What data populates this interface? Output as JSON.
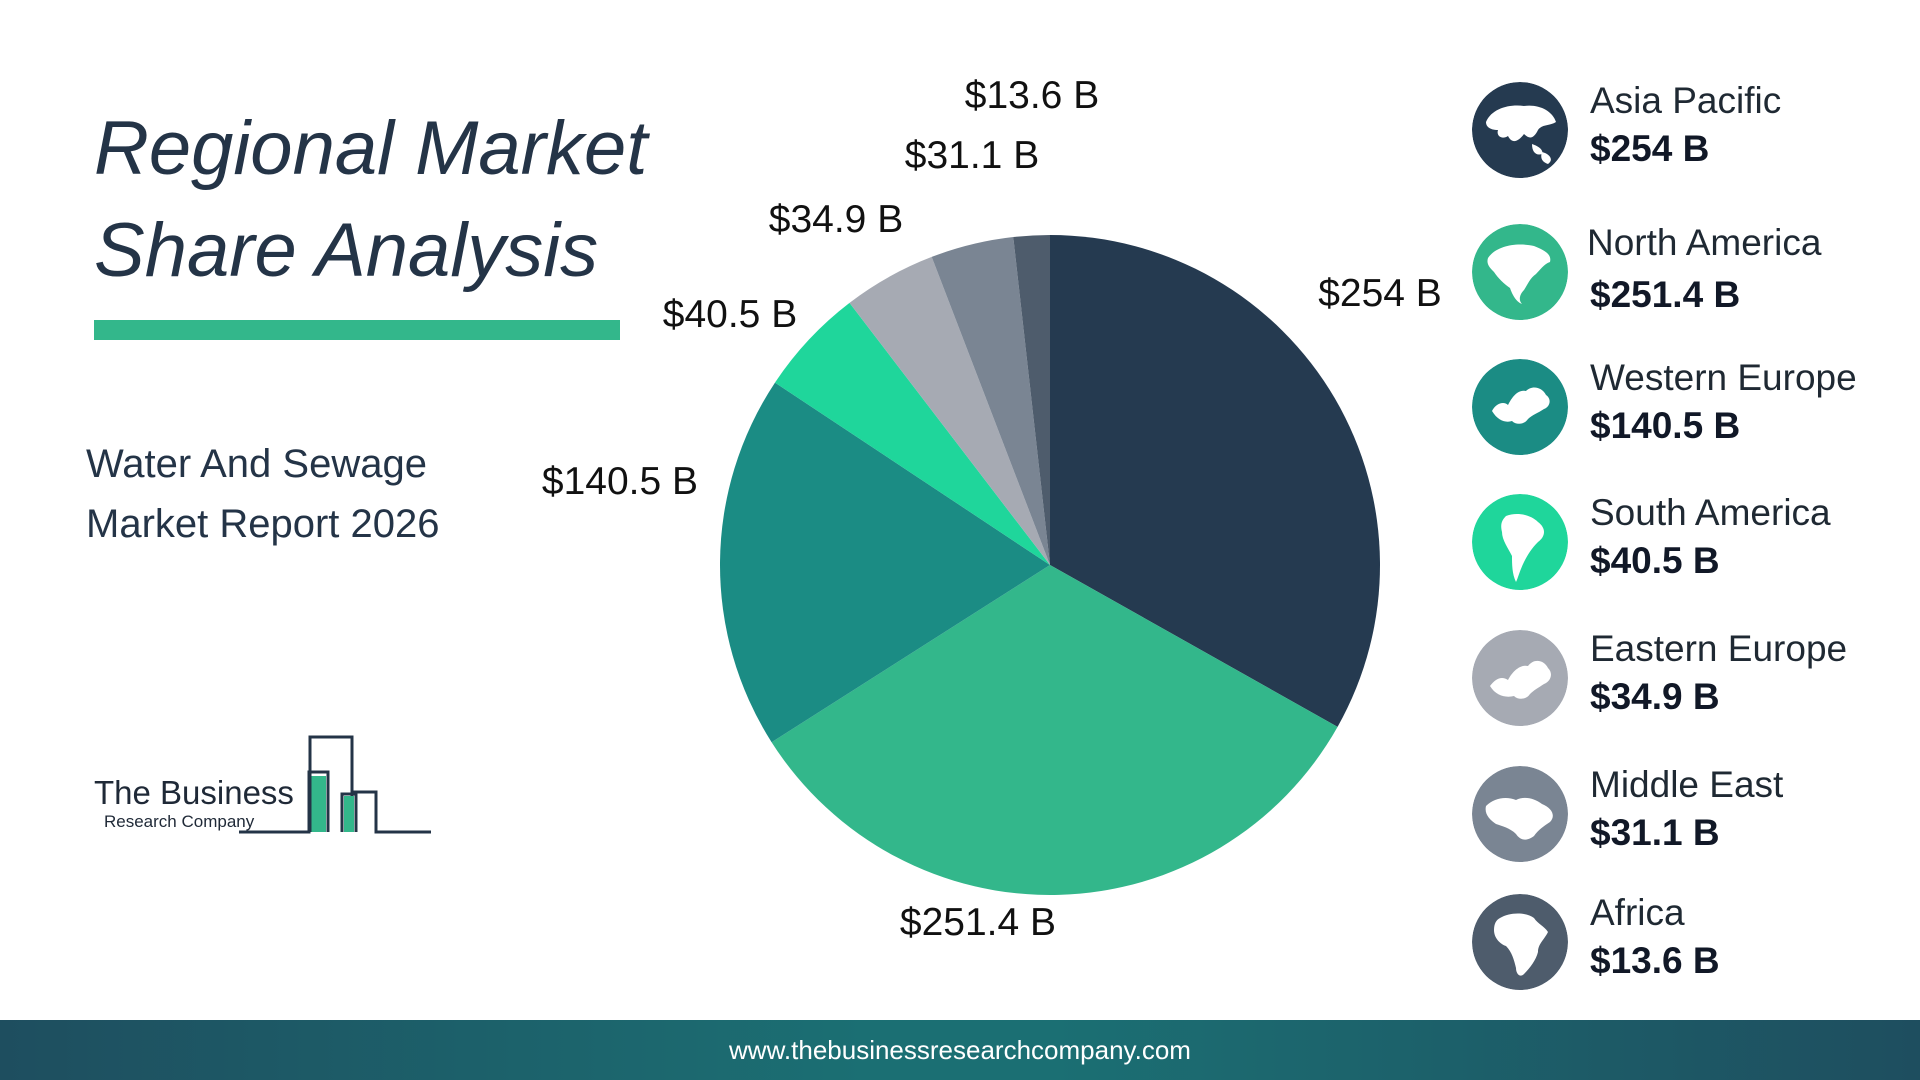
{
  "title_line1": "Regional Market",
  "title_line2": "Share Analysis",
  "subtitle_line1": "Water And Sewage",
  "subtitle_line2": "Market Report 2026",
  "logo": {
    "line1": "The Business",
    "line2": "Research Company"
  },
  "footer": {
    "url": "www.thebusinessresearchcompany.com"
  },
  "colors": {
    "asia_pacific": "#253a50",
    "north_america": "#33b78b",
    "western_europe": "#1b8c84",
    "south_america": "#1fd69b",
    "eastern_europe": "#a6aab3",
    "middle_east": "#7a8593",
    "africa": "#4e5c6c",
    "accent_bar": "#33b78b"
  },
  "legend": [
    {
      "name": "Asia Pacific",
      "value": "$254 B",
      "icon": "asia-map-icon",
      "color": "#253a50"
    },
    {
      "name": "North America",
      "value": "$251.4 B",
      "icon": "north-america-map-icon",
      "color": "#33b78b"
    },
    {
      "name": "Western Europe",
      "value": "$140.5 B",
      "icon": "western-europe-map-icon",
      "color": "#1b8c84"
    },
    {
      "name": "South America",
      "value": "$40.5 B",
      "icon": "south-america-map-icon",
      "color": "#1fd69b"
    },
    {
      "name": "Eastern Europe",
      "value": "$34.9 B",
      "icon": "eastern-europe-map-icon",
      "color": "#a6aab3"
    },
    {
      "name": "Middle East",
      "value": "$31.1 B",
      "icon": "middle-east-map-icon",
      "color": "#7a8593"
    },
    {
      "name": "Africa",
      "value": "$13.6 B",
      "icon": "africa-map-icon",
      "color": "#4e5c6c"
    }
  ],
  "chart_data": {
    "type": "pie",
    "title": "Regional Market Share Analysis",
    "unit": "$ B",
    "categories": [
      "Asia Pacific",
      "North America",
      "Western Europe",
      "South America",
      "Eastern Europe",
      "Middle East",
      "Africa"
    ],
    "values": [
      254,
      251.4,
      140.5,
      40.5,
      34.9,
      31.1,
      13.6
    ],
    "labels": [
      "$254 B",
      "$251.4 B",
      "$140.5 B",
      "$40.5 B",
      "$34.9 B",
      "$31.1 B",
      "$13.6 B"
    ],
    "colors": [
      "#253a50",
      "#33b78b",
      "#1b8c84",
      "#1fd69b",
      "#a6aab3",
      "#7a8593",
      "#4e5c6c"
    ],
    "start": "12 o'clock",
    "direction": "clockwise",
    "legend": "right"
  }
}
